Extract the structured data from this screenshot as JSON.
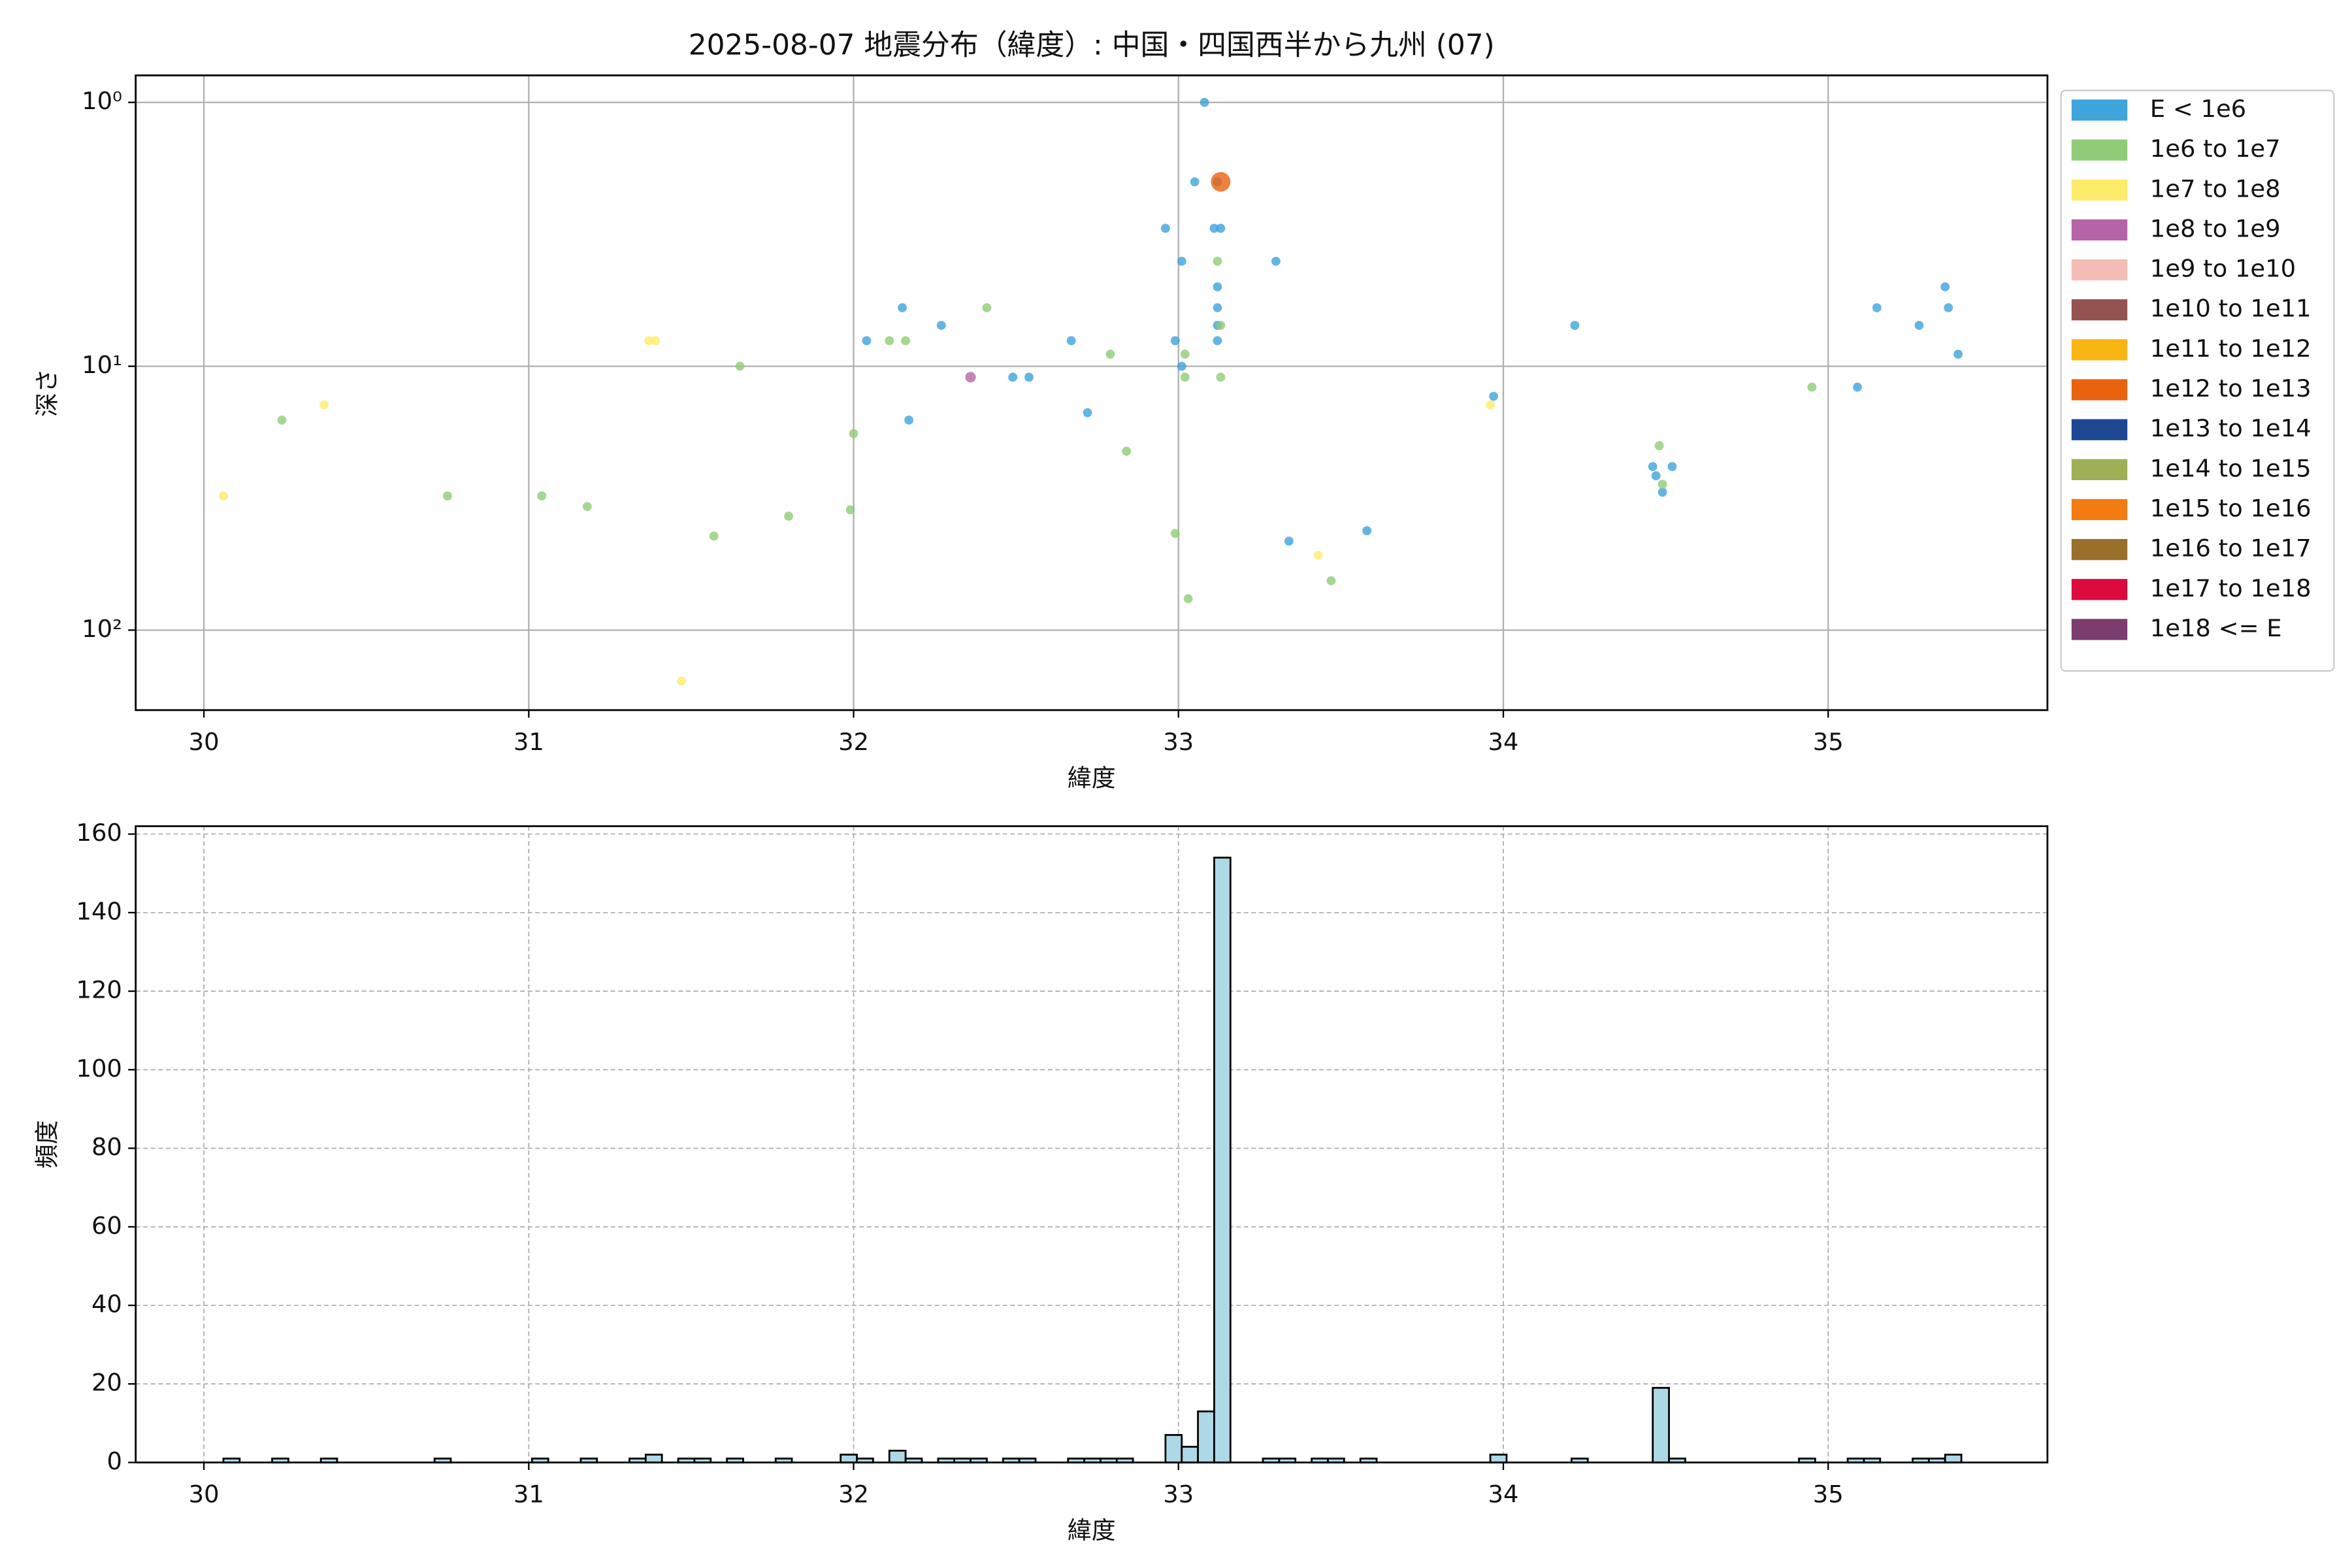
{
  "chart_data": [
    {
      "type": "scatter",
      "title": "2025-08-07 地震分布（緯度）: 中国・四国西半から九州 (07)",
      "xlabel": "緯度",
      "ylabel": "深さ",
      "xlim": [
        29.79,
        35.675
      ],
      "xticks": [
        30,
        31,
        32,
        33,
        34,
        35
      ],
      "ylim": [
        201,
        0.79
      ],
      "log_y": true,
      "yticks": [
        {
          "value": 1,
          "label": "10⁰"
        },
        {
          "value": 10,
          "label": "10¹"
        },
        {
          "value": 100,
          "label": "10²"
        }
      ],
      "grid": true,
      "legend": "outside right",
      "series": [
        {
          "name": "E < 1e6",
          "color": "#3fa3dc",
          "size": 3,
          "x": [
            33.08,
            33.05,
            32.96,
            33.11,
            33.13,
            33.01,
            33.3,
            33.12,
            33.12,
            33.12,
            33.12,
            32.15,
            32.27,
            32.04,
            32.67,
            32.99,
            33.01,
            32.49,
            32.54,
            32.17,
            32.72,
            33.97,
            34.22,
            35.15,
            35.28,
            35.36,
            35.37,
            35.4,
            35.09,
            34.46,
            34.52,
            34.47,
            34.49,
            33.34,
            33.58,
            33.12
          ],
          "values": [
            1.0,
            2.0,
            3.0,
            3.0,
            3.0,
            4.0,
            4.0,
            5.0,
            6.0,
            7.0,
            8.0,
            6.0,
            7.0,
            8.0,
            8.0,
            8.0,
            10.0,
            11,
            11,
            16,
            15,
            13,
            7,
            6,
            7,
            5,
            6,
            9,
            12,
            24,
            24,
            26,
            30,
            46,
            42,
            2.0
          ]
        },
        {
          "name": "1e6 to 1e7",
          "color": "#90cc78",
          "size": 3,
          "x": [
            30.24,
            30.75,
            31.04,
            31.18,
            31.57,
            31.8,
            31.65,
            32.0,
            31.99,
            32.11,
            32.16,
            32.41,
            32.79,
            32.84,
            33.02,
            33.02,
            32.99,
            33.03,
            33.47,
            33.12,
            33.13,
            33.13,
            34.48,
            34.49,
            34.95
          ],
          "values": [
            16,
            31,
            31,
            34,
            44,
            37,
            10,
            18,
            35,
            8,
            8,
            6,
            9,
            21,
            9,
            11,
            43,
            76,
            65,
            4,
            7,
            11,
            20,
            28,
            12
          ]
        },
        {
          "name": "1e7 to 1e8",
          "color": "#fdec6a",
          "size": 3,
          "x": [
            30.06,
            30.37,
            31.37,
            31.39,
            31.47,
            33.43,
            33.96
          ],
          "values": [
            31,
            14,
            8,
            8,
            156,
            52,
            14
          ]
        },
        {
          "name": "1e8 to 1e9",
          "color": "#b565a7",
          "size": 3.5,
          "x": [
            32.36
          ],
          "values": [
            11
          ]
        },
        {
          "name": "1e9 to 1e10",
          "color": "#f4bcb6",
          "x": [],
          "values": []
        },
        {
          "name": "1e10 to 1e11",
          "color": "#945250",
          "x": [],
          "values": []
        },
        {
          "name": "1e11 to 1e12",
          "color": "#f9b513",
          "x": [],
          "values": []
        },
        {
          "name": "1e12 to 1e13",
          "color": "#e9620e",
          "size": 6.5,
          "x": [
            33.13
          ],
          "values": [
            2.0
          ]
        },
        {
          "name": "1e13 to 1e14",
          "color": "#1d4793",
          "x": [],
          "values": []
        },
        {
          "name": "1e14 to 1e15",
          "color": "#9db056",
          "x": [],
          "values": []
        },
        {
          "name": "1e15 to 1e16",
          "color": "#f27b12",
          "x": [],
          "values": []
        },
        {
          "name": "1e16 to 1e17",
          "color": "#9a6e2b",
          "x": [],
          "values": []
        },
        {
          "name": "1e17 to 1e18",
          "color": "#dc0a3e",
          "x": [],
          "values": []
        },
        {
          "name": "1e18 <= E",
          "color": "#7d3c6e",
          "x": [],
          "values": []
        }
      ]
    },
    {
      "type": "histogram",
      "xlabel": "緯度",
      "ylabel": "頻度",
      "xlim": [
        29.79,
        35.675
      ],
      "xticks": [
        30,
        31,
        32,
        33,
        34,
        35
      ],
      "ylim": [
        0,
        162
      ],
      "yticks": [
        0,
        20,
        40,
        60,
        80,
        100,
        120,
        140,
        160
      ],
      "grid": "dashed",
      "color": "#add8e6",
      "edgecolor": "#000000",
      "bins": [
        30.06,
        30.11,
        30.16,
        30.21,
        30.26,
        30.31,
        30.36,
        30.41,
        30.46,
        30.51,
        30.56,
        30.61,
        30.66,
        30.71,
        30.76,
        30.81,
        30.86,
        30.91,
        30.96,
        31.01,
        31.06,
        31.11,
        31.16,
        31.21,
        31.26,
        31.31,
        31.36,
        31.41,
        31.46,
        31.51,
        31.56,
        31.61,
        31.66,
        31.71,
        31.76,
        31.81,
        31.86,
        31.91,
        31.96,
        32.01,
        32.06,
        32.11,
        32.16,
        32.21,
        32.26,
        32.31,
        32.36,
        32.41,
        32.46,
        32.51,
        32.56,
        32.61,
        32.66,
        32.71,
        32.76,
        32.81,
        32.86,
        32.91,
        32.96,
        33.01,
        33.06,
        33.11,
        33.16,
        33.21,
        33.26,
        33.31,
        33.36,
        33.41,
        33.46,
        33.51,
        33.56,
        33.61,
        33.66,
        33.71,
        33.76,
        33.81,
        33.86,
        33.91,
        33.96,
        34.01,
        34.06,
        34.11,
        34.16,
        34.21,
        34.26,
        34.31,
        34.36,
        34.41,
        34.46,
        34.51,
        34.56,
        34.61,
        34.66,
        34.71,
        34.76,
        34.81,
        34.86,
        34.91,
        34.96,
        35.01,
        35.06,
        35.11,
        35.16,
        35.21,
        35.26,
        35.31,
        35.36,
        35.41
      ],
      "values": [
        1,
        0,
        0,
        1,
        0,
        0,
        1,
        0,
        0,
        0,
        0,
        0,
        0,
        1,
        0,
        0,
        0,
        0,
        0,
        1,
        0,
        0,
        1,
        0,
        0,
        1,
        2,
        0,
        1,
        1,
        0,
        1,
        0,
        0,
        1,
        0,
        0,
        0,
        2,
        1,
        0,
        3,
        1,
        0,
        1,
        1,
        1,
        0,
        1,
        1,
        0,
        0,
        1,
        1,
        1,
        1,
        0,
        0,
        7,
        4,
        13,
        154,
        0,
        0,
        1,
        1,
        0,
        1,
        1,
        0,
        1,
        0,
        0,
        0,
        0,
        0,
        0,
        0,
        2,
        0,
        0,
        0,
        0,
        1,
        0,
        0,
        0,
        0,
        19,
        1,
        0,
        0,
        0,
        0,
        0,
        0,
        0,
        1,
        0,
        0,
        1,
        1,
        0,
        0,
        1,
        1,
        2
      ]
    }
  ]
}
